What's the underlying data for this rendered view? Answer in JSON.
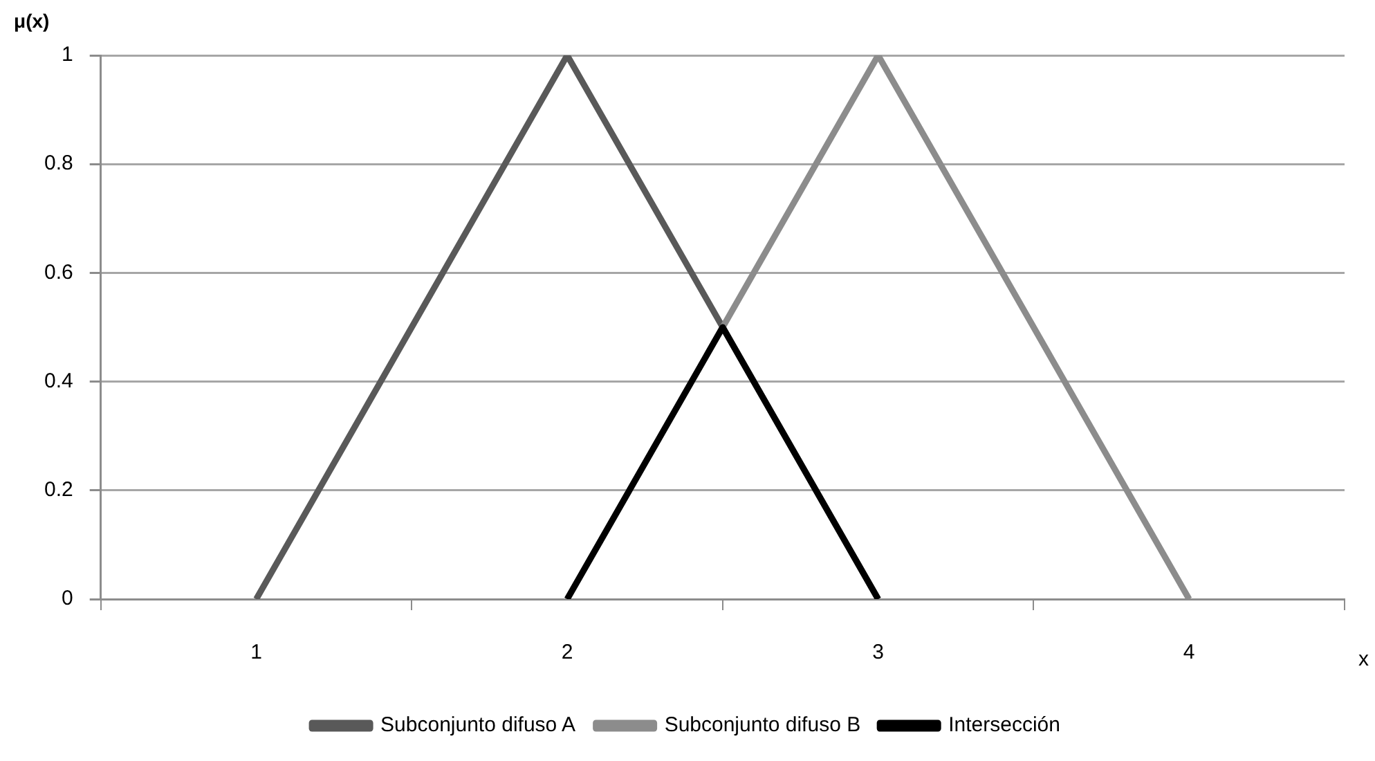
{
  "chart_data": {
    "type": "line",
    "xlabel": "x",
    "ylabel": "μ(x)",
    "xlim": [
      0.5,
      4.5
    ],
    "xticks": [
      {
        "value": 0.5,
        "label": null
      },
      1,
      {
        "value": 1.5,
        "label": null
      },
      2,
      {
        "value": 2.5,
        "label": null
      },
      3,
      {
        "value": 3.5,
        "label": null
      },
      4,
      {
        "value": 4.5,
        "label": null
      }
    ],
    "ylim": [
      0,
      1
    ],
    "yticks": [
      0,
      0.2,
      0.4,
      0.6,
      0.8,
      1
    ],
    "grid": "y",
    "legend": "bottom",
    "marker": "none",
    "line_style": "solid",
    "series": [
      {
        "name": "Subconjunto difuso A",
        "color": "#595959",
        "x": [
          1,
          2,
          3
        ],
        "values": [
          0,
          1,
          0
        ]
      },
      {
        "name": "Subconjunto difuso B",
        "color": "#8c8c8c",
        "x": [
          2,
          3,
          4
        ],
        "values": [
          0,
          1,
          0
        ]
      },
      {
        "name": "Intersección",
        "color": "#000000",
        "x": [
          2,
          2.5,
          3
        ],
        "values": [
          0,
          0.5,
          0
        ]
      }
    ]
  }
}
